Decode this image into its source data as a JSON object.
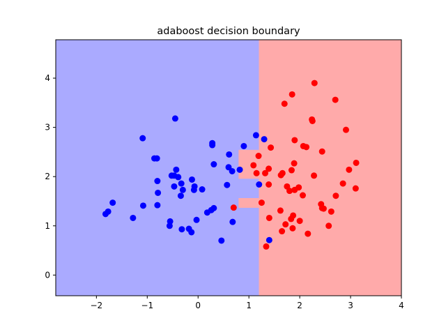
{
  "chart_data": {
    "type": "scatter",
    "title": "adaboost decision boundary",
    "xlabel": "",
    "ylabel": "",
    "xlim": [
      -2.8,
      4.0
    ],
    "ylim": [
      -0.42,
      4.78
    ],
    "xticks": [
      -2,
      -1,
      0,
      1,
      2,
      3,
      4
    ],
    "yticks": [
      0,
      1,
      2,
      3,
      4
    ],
    "grid": false,
    "legend": "none",
    "background_regions": [
      {
        "class": "blue",
        "color": "#aaaaff",
        "x_range": [
          -2.8,
          1.2
        ],
        "y_range": [
          -0.42,
          4.78
        ]
      },
      {
        "class": "red",
        "color": "#ffaaaa",
        "x_range": [
          1.2,
          4.0
        ],
        "y_range": [
          -0.42,
          4.78
        ]
      },
      {
        "class": "red",
        "color": "#ffaaaa",
        "x_range": [
          0.8,
          1.2
        ],
        "y_range": [
          1.96,
          2.54
        ]
      },
      {
        "class": "red",
        "color": "#ffaaaa",
        "x_range": [
          0.8,
          1.2
        ],
        "y_range": [
          1.37,
          1.56
        ]
      }
    ],
    "series": [
      {
        "color": "#0000ff",
        "points": [
          [
            -1.82,
            1.24
          ],
          [
            -1.77,
            1.29
          ],
          [
            -1.68,
            1.47
          ],
          [
            -1.28,
            1.16
          ],
          [
            -1.08,
            1.41
          ],
          [
            -1.09,
            2.78
          ],
          [
            -0.86,
            2.37
          ],
          [
            -0.81,
            2.37
          ],
          [
            -0.8,
            1.91
          ],
          [
            -0.79,
            1.67
          ],
          [
            -0.8,
            1.42
          ],
          [
            -0.56,
            1.0
          ],
          [
            -0.55,
            1.09
          ],
          [
            -0.52,
            2.02
          ],
          [
            -0.47,
            2.02
          ],
          [
            -0.45,
            3.18
          ],
          [
            -0.47,
            1.8
          ],
          [
            -0.43,
            2.14
          ],
          [
            -0.39,
            1.99
          ],
          [
            -0.34,
            1.61
          ],
          [
            -0.33,
            1.86
          ],
          [
            -0.3,
            1.73
          ],
          [
            -0.32,
            0.93
          ],
          [
            -0.18,
            0.94
          ],
          [
            -0.13,
            0.87
          ],
          [
            -0.12,
            1.94
          ],
          [
            -0.08,
            1.73
          ],
          [
            -0.07,
            1.8
          ],
          [
            -0.03,
            1.12
          ],
          [
            0.08,
            1.74
          ],
          [
            0.18,
            1.27
          ],
          [
            0.26,
            1.32
          ],
          [
            0.31,
            1.36
          ],
          [
            0.28,
            2.68
          ],
          [
            0.28,
            2.64
          ],
          [
            0.31,
            2.25
          ],
          [
            0.46,
            0.7
          ],
          [
            0.57,
            1.83
          ],
          [
            0.6,
            2.19
          ],
          [
            0.61,
            2.45
          ],
          [
            0.67,
            2.11
          ],
          [
            0.68,
            1.08
          ],
          [
            0.82,
            2.14
          ],
          [
            0.9,
            2.62
          ],
          [
            1.14,
            2.84
          ],
          [
            1.2,
            1.84
          ],
          [
            1.3,
            2.76
          ],
          [
            1.4,
            0.71
          ]
        ]
      },
      {
        "color": "#ff0000",
        "points": [
          [
            0.7,
            1.37
          ],
          [
            1.09,
            2.23
          ],
          [
            1.15,
            2.07
          ],
          [
            1.19,
            2.42
          ],
          [
            1.25,
            1.47
          ],
          [
            1.32,
            2.07
          ],
          [
            1.34,
            0.58
          ],
          [
            1.39,
            1.84
          ],
          [
            1.39,
            2.16
          ],
          [
            1.4,
            1.16
          ],
          [
            1.43,
            2.59
          ],
          [
            1.62,
            1.31
          ],
          [
            1.63,
            2.03
          ],
          [
            1.66,
            2.07
          ],
          [
            1.65,
            0.89
          ],
          [
            1.72,
            1.03
          ],
          [
            1.7,
            3.48
          ],
          [
            1.75,
            1.8
          ],
          [
            1.8,
            1.71
          ],
          [
            1.83,
            1.14
          ],
          [
            1.84,
            2.13
          ],
          [
            1.85,
            3.67
          ],
          [
            1.86,
            0.95
          ],
          [
            1.87,
            1.21
          ],
          [
            1.89,
            2.27
          ],
          [
            1.9,
            1.73
          ],
          [
            1.9,
            2.74
          ],
          [
            1.98,
            1.78
          ],
          [
            2.0,
            1.1
          ],
          [
            2.06,
            1.62
          ],
          [
            2.07,
            2.62
          ],
          [
            2.13,
            2.6
          ],
          [
            2.16,
            0.84
          ],
          [
            2.24,
            3.16
          ],
          [
            2.25,
            3.13
          ],
          [
            2.28,
            2.02
          ],
          [
            2.29,
            3.9
          ],
          [
            2.42,
            1.44
          ],
          [
            2.44,
            1.36
          ],
          [
            2.44,
            2.51
          ],
          [
            2.47,
            1.35
          ],
          [
            2.57,
            1.0
          ],
          [
            2.62,
            1.29
          ],
          [
            2.7,
            3.56
          ],
          [
            2.71,
            1.61
          ],
          [
            2.85,
            1.86
          ],
          [
            2.91,
            2.95
          ],
          [
            2.97,
            2.14
          ],
          [
            3.1,
            1.76
          ],
          [
            3.11,
            2.28
          ]
        ]
      }
    ]
  }
}
